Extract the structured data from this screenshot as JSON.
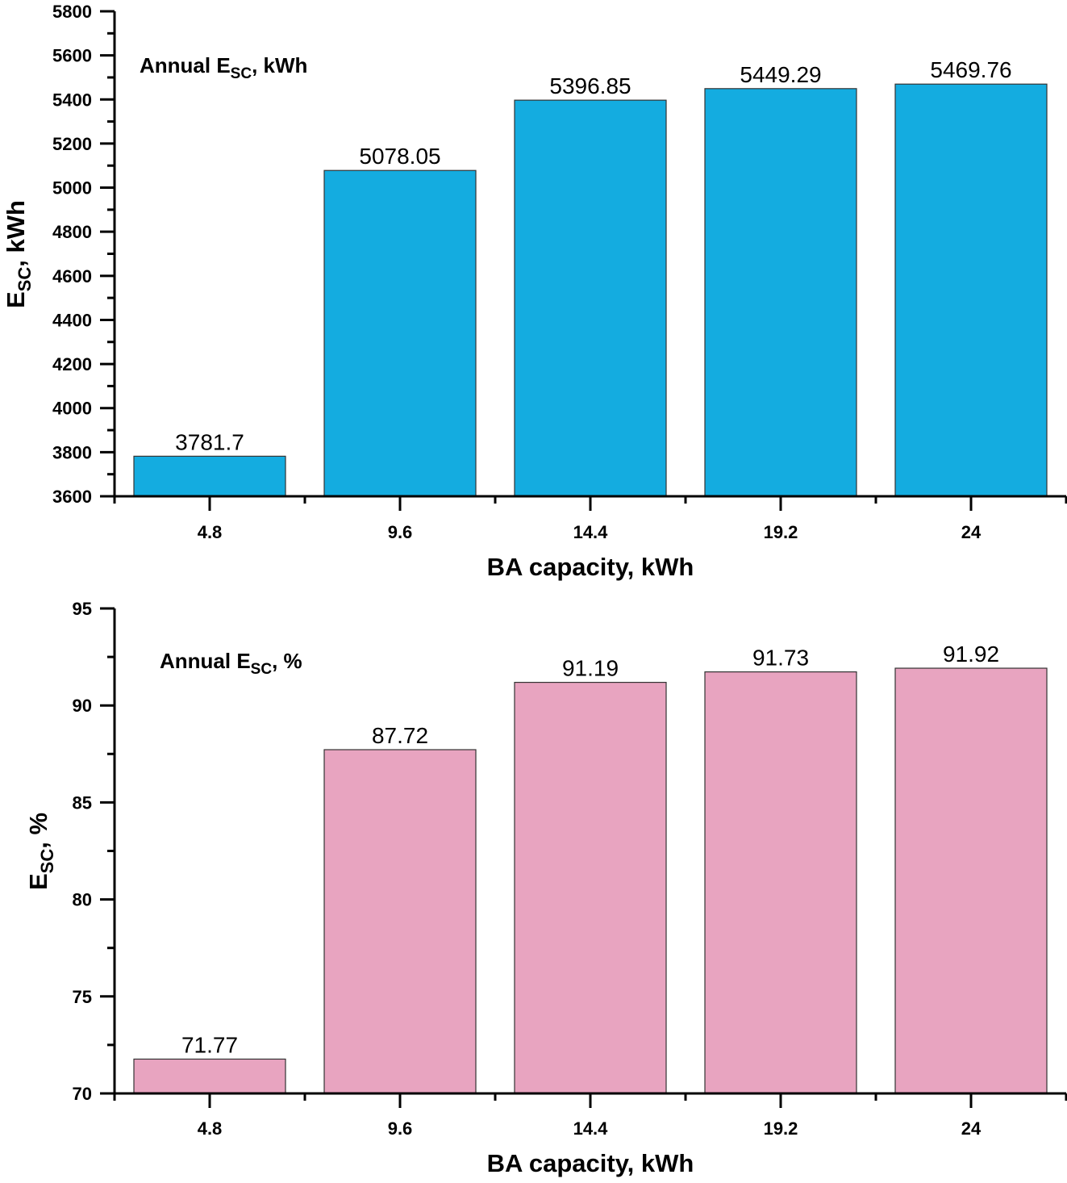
{
  "chart_data": [
    {
      "type": "bar",
      "annotation": {
        "main": "Annual E",
        "sub": "SC",
        "tail": ", kWh"
      },
      "xlabel": "BA capacity, kWh",
      "ylabel": {
        "main": "E",
        "sub": "SC",
        "tail": ", kWh"
      },
      "categories": [
        "4.8",
        "9.6",
        "14.4",
        "19.2",
        "24"
      ],
      "values": [
        3781.7,
        5078.05,
        5396.85,
        5449.29,
        5469.76
      ],
      "data_labels": [
        "3781.7",
        "5078.05",
        "5396.85",
        "5449.29",
        "5469.76"
      ],
      "ylim": [
        3600,
        5800
      ],
      "yticks": [
        3600,
        3800,
        4000,
        4200,
        4400,
        4600,
        4800,
        5000,
        5200,
        5400,
        5600,
        5800
      ],
      "color": "#14ACE0",
      "grid": false
    },
    {
      "type": "bar",
      "annotation": {
        "main": "Annual E",
        "sub": "SC",
        "tail": ", %"
      },
      "xlabel": "BA capacity, kWh",
      "ylabel": {
        "main": "E",
        "sub": "SC",
        "tail": ", %"
      },
      "categories": [
        "4.8",
        "9.6",
        "14.4",
        "19.2",
        "24"
      ],
      "values": [
        71.77,
        87.72,
        91.19,
        91.73,
        91.92
      ],
      "data_labels": [
        "71.77",
        "87.72",
        "91.19",
        "91.73",
        "91.92"
      ],
      "ylim": [
        70,
        95
      ],
      "yticks": [
        70,
        75,
        80,
        85,
        90,
        95
      ],
      "color": "#E8A4C0",
      "grid": false
    }
  ]
}
